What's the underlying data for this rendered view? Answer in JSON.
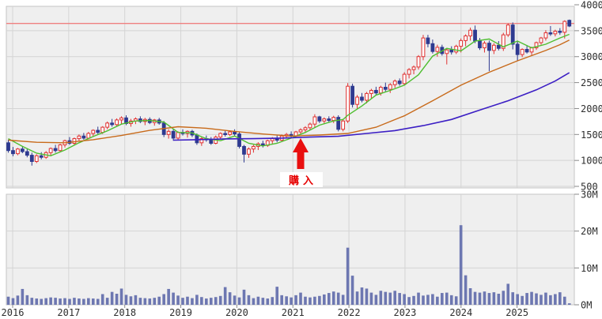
{
  "annotation": {
    "label": "購入",
    "month": "2021-04",
    "month_index": 62
  },
  "axes": {
    "price_ticks": [
      {
        "label": "4000",
        "value": 4000
      },
      {
        "label": "3500",
        "value": 3500
      },
      {
        "label": "3000",
        "value": 3000
      },
      {
        "label": "2500",
        "value": 2500
      },
      {
        "label": "2000",
        "value": 2000
      },
      {
        "label": "1500",
        "value": 1500
      },
      {
        "label": "1000",
        "value": 1000
      },
      {
        "label": "500",
        "value": 500
      }
    ],
    "volume_ticks": [
      {
        "label": "30M",
        "value": 30
      },
      {
        "label": "20M",
        "value": 20
      },
      {
        "label": "10M",
        "value": 10
      },
      {
        "label": "0M",
        "value": 0
      }
    ],
    "year_labels": [
      "2016",
      "2017",
      "2018",
      "2019",
      "2020",
      "2021",
      "2022",
      "2023",
      "2024",
      "2025"
    ]
  },
  "colors": {
    "panel_bg": "#efefef",
    "grid": "#d4d4d4",
    "panel_border": "#c4c4c4",
    "candle_up": "#e03030",
    "candle_up_fill": "#ffffff",
    "candle_down": "#2e3a90",
    "volume_bar": "#6d77b1",
    "ma_short": "#4fbe30",
    "ma_mid": "#c86a1a",
    "ma_long": "#3b1ec4",
    "ref_line": "#ef8080",
    "arrow": "#e90f0f",
    "axis_text": "#2e2e2e",
    "tick": "#8a8a8a"
  },
  "chart_data": {
    "type": "candlestick",
    "title": "",
    "interval": "month",
    "start": "2016-01",
    "ylim": [
      500,
      4000
    ],
    "volume_ylim_M": [
      0,
      30
    ],
    "grid": true,
    "reference_line": {
      "value": 3640
    },
    "candle_fields": [
      "open",
      "high",
      "low",
      "close",
      "volume_M"
    ],
    "candles": [
      [
        1340,
        1400,
        1150,
        1190,
        2.2
      ],
      [
        1190,
        1260,
        1080,
        1130,
        1.8
      ],
      [
        1130,
        1240,
        1100,
        1220,
        2.5
      ],
      [
        1220,
        1270,
        1140,
        1170,
        4.3
      ],
      [
        1170,
        1220,
        1060,
        1100,
        2.6
      ],
      [
        1100,
        1150,
        900,
        980,
        1.9
      ],
      [
        980,
        1120,
        950,
        1090,
        1.7
      ],
      [
        1090,
        1160,
        1020,
        1060,
        1.6
      ],
      [
        1060,
        1180,
        1030,
        1150,
        1.8
      ],
      [
        1150,
        1250,
        1100,
        1230,
        2.0
      ],
      [
        1230,
        1300,
        1150,
        1190,
        1.9
      ],
      [
        1190,
        1320,
        1170,
        1300,
        1.7
      ],
      [
        1300,
        1400,
        1250,
        1380,
        1.8
      ],
      [
        1380,
        1450,
        1300,
        1330,
        1.6
      ],
      [
        1330,
        1440,
        1290,
        1420,
        1.9
      ],
      [
        1420,
        1500,
        1380,
        1470,
        1.7
      ],
      [
        1470,
        1530,
        1400,
        1430,
        1.6
      ],
      [
        1430,
        1550,
        1410,
        1520,
        1.8
      ],
      [
        1520,
        1600,
        1460,
        1580,
        1.7
      ],
      [
        1580,
        1650,
        1500,
        1540,
        1.6
      ],
      [
        1540,
        1660,
        1510,
        1640,
        2.9
      ],
      [
        1640,
        1750,
        1600,
        1720,
        1.9
      ],
      [
        1720,
        1800,
        1650,
        1690,
        3.5
      ],
      [
        1690,
        1810,
        1660,
        1780,
        3.0
      ],
      [
        1780,
        1850,
        1700,
        1820,
        4.4
      ],
      [
        1820,
        1870,
        1680,
        1710,
        2.7
      ],
      [
        1710,
        1800,
        1650,
        1760,
        2.3
      ],
      [
        1760,
        1830,
        1700,
        1800,
        2.6
      ],
      [
        1800,
        1850,
        1720,
        1750,
        1.9
      ],
      [
        1750,
        1820,
        1680,
        1790,
        1.8
      ],
      [
        1790,
        1830,
        1700,
        1730,
        1.7
      ],
      [
        1730,
        1800,
        1670,
        1780,
        1.9
      ],
      [
        1780,
        1820,
        1690,
        1720,
        2.2
      ],
      [
        1720,
        1760,
        1450,
        1500,
        2.9
      ],
      [
        1500,
        1600,
        1420,
        1560,
        4.3
      ],
      [
        1560,
        1600,
        1380,
        1430,
        3.3
      ],
      [
        1430,
        1560,
        1400,
        1540,
        2.5
      ],
      [
        1540,
        1600,
        1480,
        1520,
        1.9
      ],
      [
        1520,
        1580,
        1440,
        1560,
        2.2
      ],
      [
        1560,
        1590,
        1450,
        1490,
        1.8
      ],
      [
        1490,
        1520,
        1300,
        1340,
        2.7
      ],
      [
        1340,
        1450,
        1280,
        1420,
        2.1
      ],
      [
        1420,
        1480,
        1360,
        1400,
        1.7
      ],
      [
        1400,
        1450,
        1300,
        1330,
        1.9
      ],
      [
        1330,
        1480,
        1310,
        1450,
        2.1
      ],
      [
        1450,
        1540,
        1400,
        1520,
        2.4
      ],
      [
        1520,
        1570,
        1460,
        1500,
        4.8
      ],
      [
        1500,
        1580,
        1470,
        1550,
        3.4
      ],
      [
        1550,
        1600,
        1480,
        1510,
        2.5
      ],
      [
        1510,
        1550,
        1230,
        1270,
        2.0
      ],
      [
        1270,
        1300,
        960,
        1120,
        4.1
      ],
      [
        1120,
        1250,
        1050,
        1220,
        2.6
      ],
      [
        1220,
        1300,
        1150,
        1270,
        1.8
      ],
      [
        1270,
        1350,
        1200,
        1320,
        2.2
      ],
      [
        1320,
        1380,
        1250,
        1290,
        1.9
      ],
      [
        1290,
        1400,
        1260,
        1380,
        1.7
      ],
      [
        1380,
        1450,
        1320,
        1420,
        2.1
      ],
      [
        1420,
        1480,
        1350,
        1390,
        4.9
      ],
      [
        1390,
        1500,
        1360,
        1470,
        2.6
      ],
      [
        1470,
        1530,
        1420,
        1500,
        2.3
      ],
      [
        1500,
        1560,
        1440,
        1470,
        2.0
      ],
      [
        1470,
        1570,
        1440,
        1550,
        2.6
      ],
      [
        1550,
        1620,
        1500,
        1590,
        3.3
      ],
      [
        1590,
        1660,
        1530,
        1630,
        2.2
      ],
      [
        1630,
        1730,
        1580,
        1700,
        2.0
      ],
      [
        1700,
        1890,
        1640,
        1840,
        2.2
      ],
      [
        1840,
        1860,
        1720,
        1760,
        2.4
      ],
      [
        1760,
        1830,
        1700,
        1800,
        2.8
      ],
      [
        1800,
        1850,
        1730,
        1770,
        3.2
      ],
      [
        1770,
        1860,
        1720,
        1830,
        3.6
      ],
      [
        1830,
        1870,
        1560,
        1600,
        3.3
      ],
      [
        1600,
        1780,
        1560,
        1760,
        2.7
      ],
      [
        1760,
        2490,
        1720,
        2430,
        15.5
      ],
      [
        2430,
        2480,
        2020,
        2080,
        7.9
      ],
      [
        2080,
        2260,
        2000,
        2220,
        3.6
      ],
      [
        2220,
        2300,
        2120,
        2160,
        4.7
      ],
      [
        2160,
        2320,
        2100,
        2290,
        4.4
      ],
      [
        2290,
        2380,
        2200,
        2350,
        3.3
      ],
      [
        2350,
        2420,
        2260,
        2300,
        2.7
      ],
      [
        2300,
        2440,
        2250,
        2410,
        3.8
      ],
      [
        2410,
        2500,
        2330,
        2370,
        3.5
      ],
      [
        2370,
        2490,
        2300,
        2460,
        3.3
      ],
      [
        2460,
        2560,
        2400,
        2530,
        3.8
      ],
      [
        2530,
        2580,
        2440,
        2480,
        3.2
      ],
      [
        2480,
        2700,
        2450,
        2660,
        2.9
      ],
      [
        2660,
        2780,
        2580,
        2750,
        2.1
      ],
      [
        2750,
        2830,
        2660,
        2800,
        2.4
      ],
      [
        2800,
        3030,
        2750,
        3000,
        3.3
      ],
      [
        3000,
        3420,
        2930,
        3360,
        2.5
      ],
      [
        3360,
        3420,
        3180,
        3250,
        2.7
      ],
      [
        3250,
        3330,
        3060,
        3100,
        2.9
      ],
      [
        3100,
        3230,
        3000,
        3180,
        2.2
      ],
      [
        3180,
        3230,
        3020,
        3060,
        3.2
      ],
      [
        3060,
        3160,
        2850,
        3130,
        3.3
      ],
      [
        3130,
        3200,
        3040,
        3090,
        2.6
      ],
      [
        3090,
        3230,
        3050,
        3200,
        2.3
      ],
      [
        3200,
        3350,
        3080,
        3310,
        21.6
      ],
      [
        3310,
        3430,
        3200,
        3400,
        8.0
      ],
      [
        3400,
        3560,
        3310,
        3510,
        4.5
      ],
      [
        3510,
        3600,
        3260,
        3300,
        3.5
      ],
      [
        3300,
        3360,
        3130,
        3170,
        3.3
      ],
      [
        3170,
        3300,
        3080,
        3260,
        3.6
      ],
      [
        3260,
        3310,
        2720,
        3120,
        3.2
      ],
      [
        3120,
        3260,
        3050,
        3220,
        3.4
      ],
      [
        3220,
        3300,
        3120,
        3160,
        3.0
      ],
      [
        3160,
        3460,
        3110,
        3420,
        3.8
      ],
      [
        3420,
        3640,
        3380,
        3610,
        5.7
      ],
      [
        3610,
        3660,
        3140,
        3240,
        3.4
      ],
      [
        3240,
        3290,
        2920,
        3040,
        2.9
      ],
      [
        3040,
        3160,
        2990,
        3140,
        2.4
      ],
      [
        3140,
        3210,
        3060,
        3090,
        3.2
      ],
      [
        3090,
        3190,
        3030,
        3170,
        3.5
      ],
      [
        3170,
        3290,
        3130,
        3270,
        3.1
      ],
      [
        3270,
        3380,
        3230,
        3360,
        2.7
      ],
      [
        3360,
        3510,
        3310,
        3460,
        3.3
      ],
      [
        3460,
        3590,
        3400,
        3440,
        2.6
      ],
      [
        3440,
        3520,
        3390,
        3490,
        2.9
      ],
      [
        3490,
        3550,
        3420,
        3470,
        3.4
      ],
      [
        3470,
        3700,
        3350,
        3680,
        2.2
      ],
      [
        3700,
        3715,
        3570,
        3590,
        0.4
      ]
    ],
    "ma_lines": [
      {
        "name": "ma-short",
        "color_key": "ma_short",
        "points": [
          [
            0,
            1420
          ],
          [
            3,
            1270
          ],
          [
            6,
            1140
          ],
          [
            9,
            1090
          ],
          [
            12,
            1200
          ],
          [
            15,
            1340
          ],
          [
            18,
            1460
          ],
          [
            21,
            1570
          ],
          [
            24,
            1700
          ],
          [
            27,
            1760
          ],
          [
            30,
            1770
          ],
          [
            33,
            1740
          ],
          [
            36,
            1540
          ],
          [
            39,
            1530
          ],
          [
            42,
            1420
          ],
          [
            45,
            1380
          ],
          [
            48,
            1470
          ],
          [
            51,
            1330
          ],
          [
            54,
            1280
          ],
          [
            57,
            1330
          ],
          [
            60,
            1430
          ],
          [
            63,
            1540
          ],
          [
            66,
            1680
          ],
          [
            69,
            1760
          ],
          [
            71,
            1790
          ],
          [
            72,
            1870
          ],
          [
            75,
            2050
          ],
          [
            78,
            2260
          ],
          [
            81,
            2350
          ],
          [
            84,
            2450
          ],
          [
            87,
            2650
          ],
          [
            90,
            3010
          ],
          [
            93,
            3160
          ],
          [
            96,
            3110
          ],
          [
            99,
            3300
          ],
          [
            102,
            3340
          ],
          [
            105,
            3190
          ],
          [
            108,
            3300
          ],
          [
            111,
            3170
          ],
          [
            114,
            3240
          ],
          [
            117,
            3360
          ],
          [
            119,
            3430
          ]
        ]
      },
      {
        "name": "ma-mid",
        "color_key": "ma_mid",
        "points": [
          [
            0,
            1390
          ],
          [
            6,
            1350
          ],
          [
            12,
            1340
          ],
          [
            18,
            1400
          ],
          [
            24,
            1480
          ],
          [
            30,
            1580
          ],
          [
            36,
            1650
          ],
          [
            42,
            1620
          ],
          [
            48,
            1560
          ],
          [
            54,
            1510
          ],
          [
            60,
            1470
          ],
          [
            66,
            1490
          ],
          [
            72,
            1520
          ],
          [
            78,
            1640
          ],
          [
            84,
            1860
          ],
          [
            90,
            2150
          ],
          [
            96,
            2450
          ],
          [
            102,
            2700
          ],
          [
            108,
            2920
          ],
          [
            114,
            3120
          ],
          [
            117,
            3230
          ],
          [
            119,
            3320
          ]
        ]
      },
      {
        "name": "ma-long",
        "color_key": "ma_long",
        "points": [
          [
            35,
            1390
          ],
          [
            40,
            1400
          ],
          [
            46,
            1415
          ],
          [
            52,
            1420
          ],
          [
            58,
            1430
          ],
          [
            64,
            1450
          ],
          [
            70,
            1465
          ],
          [
            76,
            1520
          ],
          [
            82,
            1575
          ],
          [
            88,
            1670
          ],
          [
            94,
            1790
          ],
          [
            100,
            1970
          ],
          [
            106,
            2150
          ],
          [
            112,
            2360
          ],
          [
            116,
            2530
          ],
          [
            119,
            2690
          ]
        ]
      }
    ]
  }
}
